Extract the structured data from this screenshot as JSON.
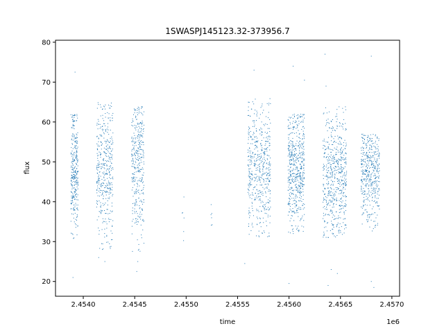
{
  "chart_data": {
    "type": "scatter",
    "title": "1SWASPJ145123.32-373956.7",
    "xlabel": "time",
    "ylabel": "flux",
    "x_offset_label": "1e6",
    "xlim": [
      2453730,
      2457075
    ],
    "ylim": [
      16.3,
      80.5
    ],
    "grid": false,
    "marker_color": "#1f77b4",
    "x_ticks": [
      {
        "value": 2454000,
        "label": "2.4540"
      },
      {
        "value": 2454500,
        "label": "2.4545"
      },
      {
        "value": 2455000,
        "label": "2.4550"
      },
      {
        "value": 2455500,
        "label": "2.4555"
      },
      {
        "value": 2456000,
        "label": "2.4560"
      },
      {
        "value": 2456500,
        "label": "2.4565"
      },
      {
        "value": 2457000,
        "label": "2.4570"
      }
    ],
    "y_ticks": [
      {
        "value": 20,
        "label": "20"
      },
      {
        "value": 30,
        "label": "30"
      },
      {
        "value": 40,
        "label": "40"
      },
      {
        "value": 50,
        "label": "50"
      },
      {
        "value": 60,
        "label": "60"
      },
      {
        "value": 70,
        "label": "70"
      },
      {
        "value": 80,
        "label": "80"
      }
    ],
    "series": [
      {
        "segments": [
          {
            "t_start": 2453880,
            "t_end": 2453950,
            "mean": 47.5,
            "min": 30,
            "max": 62,
            "count": 320
          },
          {
            "t_start": 2454130,
            "t_end": 2454290,
            "mean": 48,
            "min": 28,
            "max": 65,
            "count": 420
          },
          {
            "t_start": 2454470,
            "t_end": 2454590,
            "mean": 48,
            "min": 27,
            "max": 64,
            "count": 360
          },
          {
            "t_start": 2454960,
            "t_end": 2454980,
            "mean": 33,
            "min": 27,
            "max": 44,
            "count": 6
          },
          {
            "t_start": 2455230,
            "t_end": 2455260,
            "mean": 35,
            "min": 28,
            "max": 41,
            "count": 6
          },
          {
            "t_start": 2455600,
            "t_end": 2455820,
            "mean": 48,
            "min": 31,
            "max": 66,
            "count": 520
          },
          {
            "t_start": 2455990,
            "t_end": 2456150,
            "mean": 48,
            "min": 32,
            "max": 62,
            "count": 560
          },
          {
            "t_start": 2456330,
            "t_end": 2456560,
            "mean": 46,
            "min": 31,
            "max": 64,
            "count": 600
          },
          {
            "t_start": 2456700,
            "t_end": 2456880,
            "mean": 47,
            "min": 32,
            "max": 57,
            "count": 460
          }
        ],
        "outliers": [
          {
            "x": 2453900,
            "y": 21
          },
          {
            "x": 2454150,
            "y": 26
          },
          {
            "x": 2454210,
            "y": 25
          },
          {
            "x": 2454520,
            "y": 22.5
          },
          {
            "x": 2454530,
            "y": 25
          },
          {
            "x": 2455570,
            "y": 24.5
          },
          {
            "x": 2456000,
            "y": 19.5
          },
          {
            "x": 2456380,
            "y": 19
          },
          {
            "x": 2456410,
            "y": 23
          },
          {
            "x": 2456470,
            "y": 22
          },
          {
            "x": 2456800,
            "y": 20
          },
          {
            "x": 2456825,
            "y": 18.5
          },
          {
            "x": 2456350,
            "y": 77
          },
          {
            "x": 2456800,
            "y": 76.5
          },
          {
            "x": 2453920,
            "y": 72.5
          },
          {
            "x": 2455660,
            "y": 73
          },
          {
            "x": 2456040,
            "y": 74
          },
          {
            "x": 2456150,
            "y": 70.5
          },
          {
            "x": 2456360,
            "y": 69
          }
        ]
      }
    ]
  }
}
